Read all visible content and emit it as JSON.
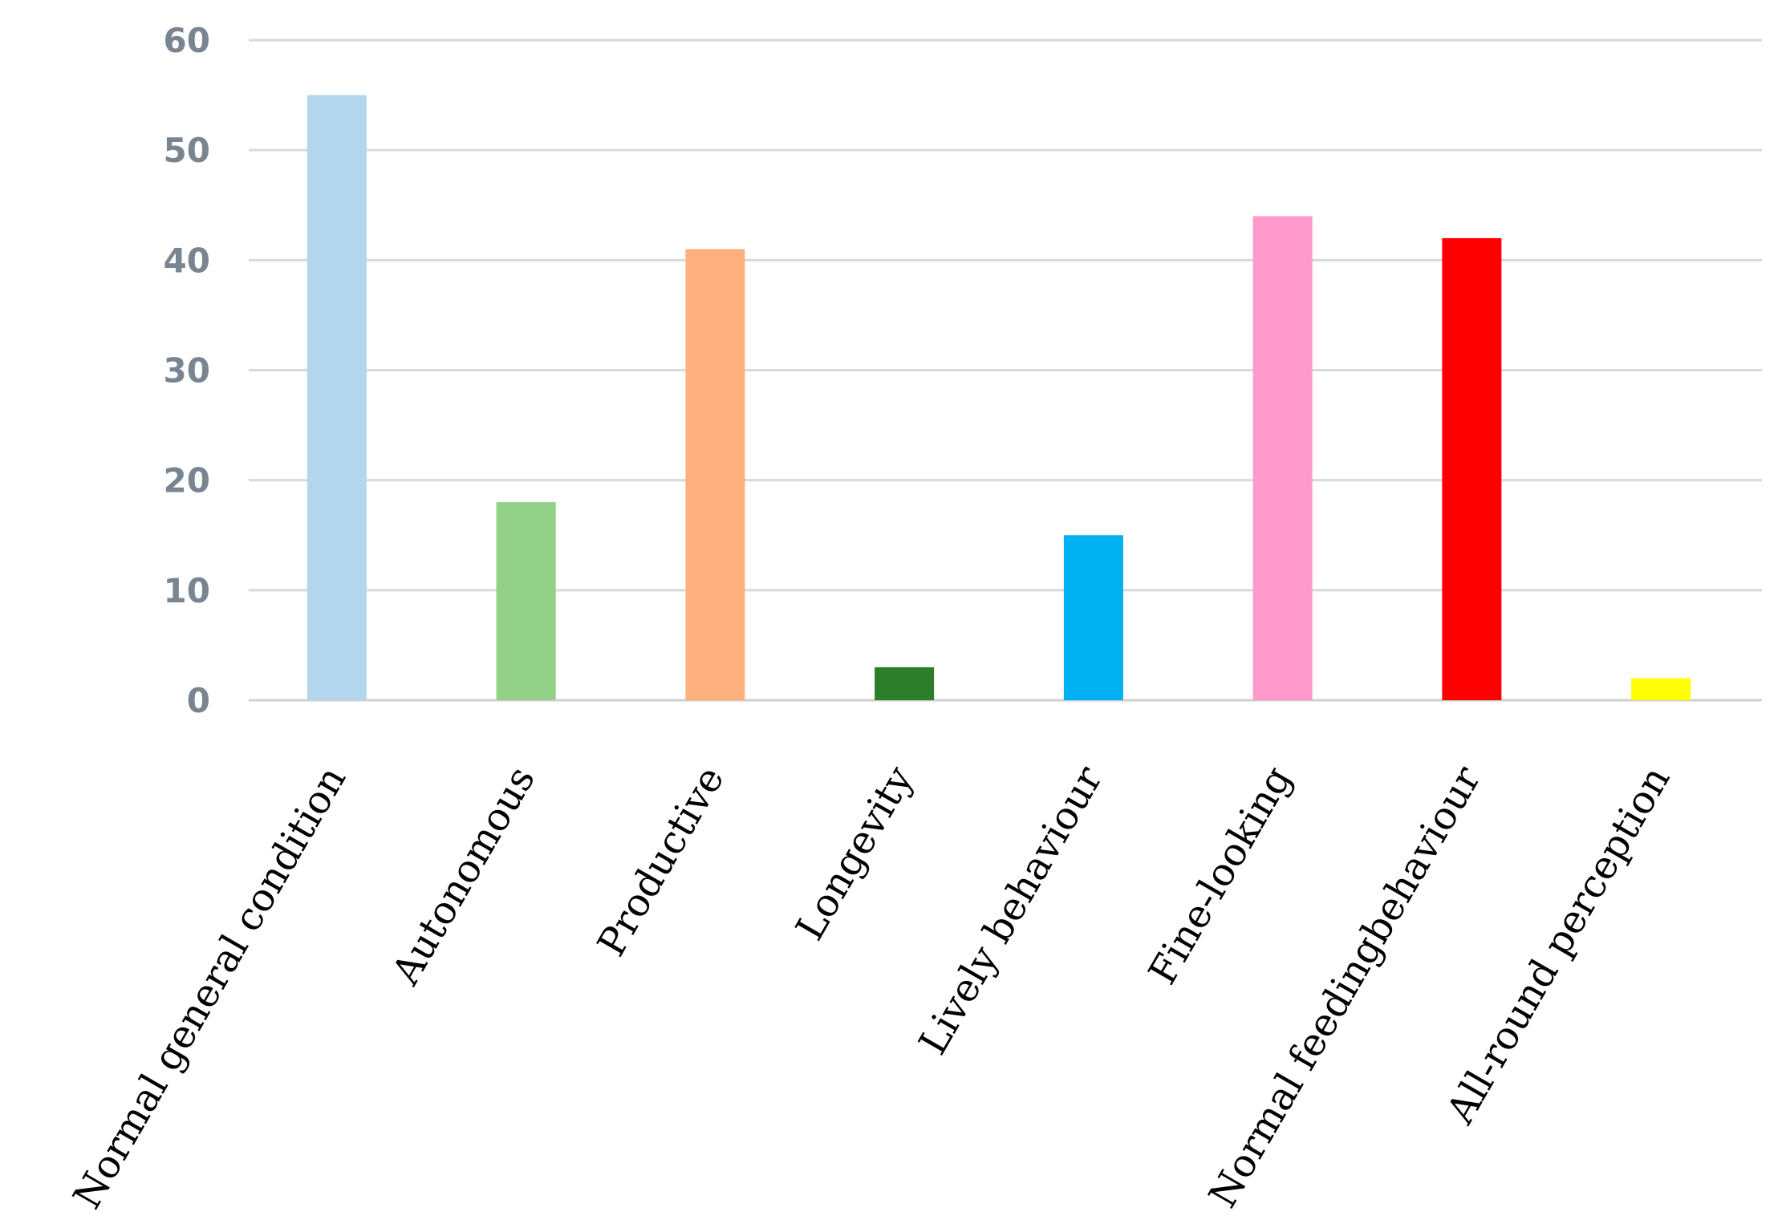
{
  "chart_data": {
    "type": "bar",
    "title": "",
    "xlabel": "",
    "ylabel": "",
    "ylim": [
      0,
      60
    ],
    "yticks": [
      0,
      10,
      20,
      30,
      40,
      50,
      60
    ],
    "grid": true,
    "legend": "none",
    "categories": [
      "Normal general condition",
      "Autonomous",
      "Productive",
      "Longevity",
      "Lively behaviour",
      "Fine-looking",
      "Normal feedingbehaviour",
      "All-round perception"
    ],
    "values": [
      55,
      18,
      41,
      3,
      15,
      44,
      42,
      2
    ],
    "colors": [
      "#b3d5ee",
      "#93d088",
      "#ffb07e",
      "#2e7d2a",
      "#00b0f0",
      "#ff99cc",
      "#ff0000",
      "#ffff00"
    ]
  }
}
